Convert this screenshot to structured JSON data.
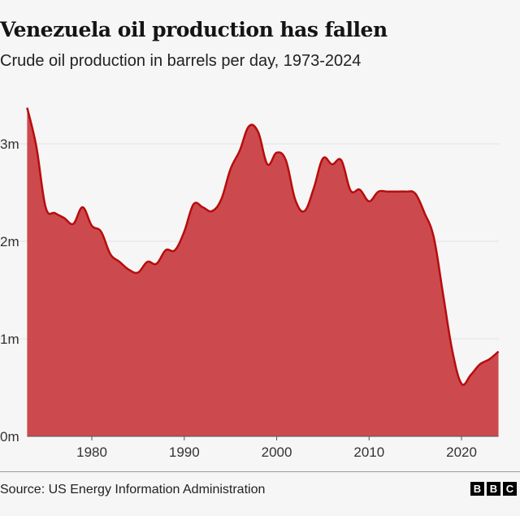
{
  "title": "Venezuela oil production has fallen",
  "subtitle": "Crude oil production in barrels per day, 1973-2024",
  "source": "Source: US Energy Information Administration",
  "logo": "BBC",
  "colors": {
    "fill": "#cc4a4d",
    "line": "#b80c0c",
    "grid": "#e3e3e3",
    "axis": "#555555"
  },
  "chart_data": {
    "type": "area",
    "title": "Venezuela oil production has fallen",
    "subtitle": "Crude oil production in barrels per day, 1973-2024",
    "xlabel": "",
    "ylabel": "",
    "xlim": [
      1973,
      2024
    ],
    "ylim": [
      0,
      3.4
    ],
    "grid": true,
    "x_ticks": [
      1980,
      1990,
      2000,
      2010,
      2020
    ],
    "y_ticks": [
      {
        "value": 0,
        "label": "0m"
      },
      {
        "value": 1,
        "label": "1m"
      },
      {
        "value": 2,
        "label": "2m"
      },
      {
        "value": 3,
        "label": "3m"
      }
    ],
    "x": [
      1973,
      1974,
      1975,
      1976,
      1977,
      1978,
      1979,
      1980,
      1981,
      1982,
      1983,
      1984,
      1985,
      1986,
      1987,
      1988,
      1989,
      1990,
      1991,
      1992,
      1993,
      1994,
      1995,
      1996,
      1997,
      1998,
      1999,
      2000,
      2001,
      2002,
      2003,
      2004,
      2005,
      2006,
      2007,
      2008,
      2009,
      2010,
      2011,
      2012,
      2013,
      2014,
      2015,
      2016,
      2017,
      2018,
      2019,
      2020,
      2021,
      2022,
      2023,
      2024
    ],
    "values_millions": [
      3.37,
      2.97,
      2.35,
      2.29,
      2.24,
      2.18,
      2.35,
      2.16,
      2.1,
      1.87,
      1.79,
      1.71,
      1.68,
      1.79,
      1.77,
      1.91,
      1.91,
      2.1,
      2.38,
      2.35,
      2.31,
      2.43,
      2.74,
      2.93,
      3.18,
      3.12,
      2.79,
      2.91,
      2.83,
      2.43,
      2.31,
      2.54,
      2.85,
      2.79,
      2.83,
      2.52,
      2.53,
      2.41,
      2.51,
      2.51,
      2.51,
      2.51,
      2.49,
      2.29,
      2.04,
      1.46,
      0.88,
      0.54,
      0.63,
      0.74,
      0.79,
      0.87
    ]
  }
}
